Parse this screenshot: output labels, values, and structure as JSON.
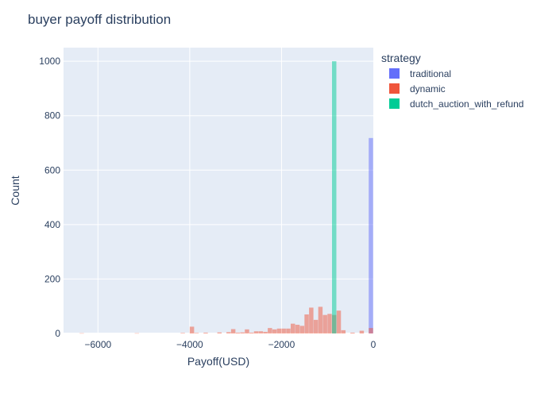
{
  "chart_data": {
    "type": "bar",
    "subtype": "overlaid-histogram",
    "title": "buyer payoff distribution",
    "xlabel": "Payoff(USD)",
    "ylabel": "Count",
    "xlim": [
      -6750,
      0
    ],
    "ylim": [
      0,
      1050
    ],
    "x_ticks": [
      -6000,
      -4000,
      -2000,
      0
    ],
    "x_tick_labels": [
      "−6000",
      "−4000",
      "−2000",
      "0"
    ],
    "y_ticks": [
      0,
      200,
      400,
      600,
      800,
      1000
    ],
    "y_tick_labels": [
      "0",
      "200",
      "400",
      "600",
      "800",
      "1000"
    ],
    "grid": true,
    "legend": {
      "title": "strategy",
      "placement": "right"
    },
    "series": [
      {
        "name": "traditional",
        "color": "#636efa",
        "bins": [
          {
            "x0": -100,
            "x1": 0,
            "count": 718
          }
        ]
      },
      {
        "name": "dynamic",
        "color": "#ef553b",
        "bins": [
          {
            "x0": -6400,
            "x1": -6300,
            "count": 1
          },
          {
            "x0": -5200,
            "x1": -5100,
            "count": 1
          },
          {
            "x0": -4200,
            "x1": -4100,
            "count": 2
          },
          {
            "x0": -4000,
            "x1": -3900,
            "count": 25
          },
          {
            "x0": -3900,
            "x1": -3800,
            "count": 2
          },
          {
            "x0": -3700,
            "x1": -3600,
            "count": 3
          },
          {
            "x0": -3400,
            "x1": -3300,
            "count": 4
          },
          {
            "x0": -3200,
            "x1": -3100,
            "count": 5
          },
          {
            "x0": -3100,
            "x1": -3000,
            "count": 16
          },
          {
            "x0": -3000,
            "x1": -2900,
            "count": 3
          },
          {
            "x0": -2900,
            "x1": -2800,
            "count": 4
          },
          {
            "x0": -2800,
            "x1": -2700,
            "count": 15
          },
          {
            "x0": -2700,
            "x1": -2600,
            "count": 3
          },
          {
            "x0": -2600,
            "x1": -2500,
            "count": 8
          },
          {
            "x0": -2500,
            "x1": -2400,
            "count": 8
          },
          {
            "x0": -2400,
            "x1": -2300,
            "count": 6
          },
          {
            "x0": -2300,
            "x1": -2200,
            "count": 20
          },
          {
            "x0": -2200,
            "x1": -2100,
            "count": 15
          },
          {
            "x0": -2100,
            "x1": -2000,
            "count": 18
          },
          {
            "x0": -2000,
            "x1": -1900,
            "count": 18
          },
          {
            "x0": -1900,
            "x1": -1800,
            "count": 18
          },
          {
            "x0": -1800,
            "x1": -1700,
            "count": 36
          },
          {
            "x0": -1700,
            "x1": -1600,
            "count": 32
          },
          {
            "x0": -1600,
            "x1": -1500,
            "count": 28
          },
          {
            "x0": -1500,
            "x1": -1400,
            "count": 70
          },
          {
            "x0": -1400,
            "x1": -1300,
            "count": 95
          },
          {
            "x0": -1300,
            "x1": -1200,
            "count": 50
          },
          {
            "x0": -1200,
            "x1": -1100,
            "count": 98
          },
          {
            "x0": -1100,
            "x1": -1000,
            "count": 68
          },
          {
            "x0": -1000,
            "x1": -900,
            "count": 72
          },
          {
            "x0": -900,
            "x1": -800,
            "count": 68
          },
          {
            "x0": -800,
            "x1": -700,
            "count": 84
          },
          {
            "x0": -700,
            "x1": -600,
            "count": 12
          },
          {
            "x0": -500,
            "x1": -400,
            "count": 3
          },
          {
            "x0": -300,
            "x1": -200,
            "count": 10
          },
          {
            "x0": -100,
            "x1": 0,
            "count": 20
          }
        ]
      },
      {
        "name": "dutch_auction_with_refund",
        "color": "#00cc96",
        "bins": [
          {
            "x0": -900,
            "x1": -800,
            "count": 1000
          }
        ]
      }
    ]
  }
}
